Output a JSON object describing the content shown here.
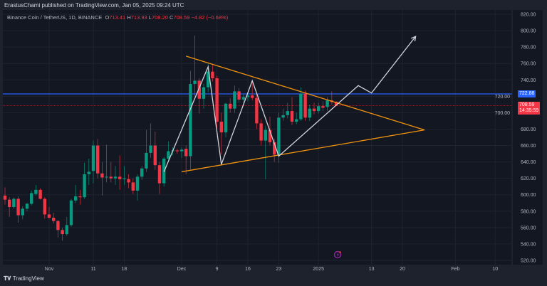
{
  "header": {
    "published": "ErastusChami published on TradingView.com, Jan 05, 2025 09:24 UTC"
  },
  "legend": {
    "symbol": "Binance Coin / TetherUS, 1D, BINANCE",
    "o_label": "O",
    "o": "713.41",
    "h_label": "H",
    "h": "713.93",
    "l_label": "L",
    "l": "708.20",
    "c_label": "C",
    "c": "708.59",
    "change": "−4.82 (−0.68%)"
  },
  "badges": {
    "level": "722.88",
    "last_price": "708.59",
    "countdown": "14:35:59"
  },
  "footer": {
    "brand": "TradingView"
  },
  "colors": {
    "up": "#089981",
    "down": "#f23645",
    "level_line": "#2962ff",
    "trendlines": "#f0920e",
    "projection": "#d1d4dc",
    "background": "#131722"
  },
  "icons": {
    "logo": "tradingview-logo-icon",
    "event": "lightning-icon"
  },
  "chart_data": {
    "type": "candlestick",
    "title": "",
    "interval": "1D",
    "ylim": [
      520,
      820
    ],
    "grid": true,
    "y_ticks": [
      "820.00",
      "800.00",
      "780.00",
      "760.00",
      "740.00",
      "720.00",
      "700.00",
      "680.00",
      "660.00",
      "640.00",
      "620.00",
      "600.00",
      "580.00",
      "560.00",
      "540.00",
      "520.00"
    ],
    "x_ticks": [
      [
        "2024-11-01",
        "Nov"
      ],
      [
        "2024-11-11",
        "11"
      ],
      [
        "2024-11-18",
        "18"
      ],
      [
        "2024-12-01",
        "Dec"
      ],
      [
        "2024-12-09",
        "9"
      ],
      [
        "2024-12-16",
        "16"
      ],
      [
        "2024-12-23",
        "23"
      ],
      [
        "2025-01-01",
        "2025"
      ],
      [
        "2025-01-13",
        "13"
      ],
      [
        "2025-01-20",
        "20"
      ],
      [
        "2025-02-01",
        "Feb"
      ],
      [
        "2025-02-10",
        "10"
      ]
    ],
    "candles_fields": [
      "date",
      "open",
      "high",
      "low",
      "close"
    ],
    "candles": [
      [
        "2024-10-22",
        599,
        609,
        588,
        594
      ],
      [
        "2024-10-23",
        594,
        597,
        573,
        585
      ],
      [
        "2024-10-24",
        585,
        597,
        583,
        595
      ],
      [
        "2024-10-25",
        595,
        598,
        566,
        575
      ],
      [
        "2024-10-26",
        575,
        586,
        570,
        583
      ],
      [
        "2024-10-27",
        583,
        590,
        580,
        589
      ],
      [
        "2024-10-28",
        589,
        605,
        587,
        602
      ],
      [
        "2024-10-29",
        601,
        612,
        599,
        606
      ],
      [
        "2024-10-30",
        606,
        608,
        594,
        595
      ],
      [
        "2024-10-31",
        595,
        597,
        571,
        576
      ],
      [
        "2024-11-01",
        576,
        585,
        571,
        572
      ],
      [
        "2024-11-02",
        572,
        578,
        565,
        568
      ],
      [
        "2024-11-03",
        568,
        569,
        548,
        557
      ],
      [
        "2024-11-04",
        557,
        560,
        544,
        552
      ],
      [
        "2024-11-05",
        552,
        573,
        550,
        563
      ],
      [
        "2024-11-06",
        563,
        595,
        561,
        593
      ],
      [
        "2024-11-07",
        593,
        612,
        590,
        598
      ],
      [
        "2024-11-08",
        598,
        606,
        588,
        597
      ],
      [
        "2024-11-09",
        597,
        639,
        595,
        625
      ],
      [
        "2024-11-10",
        625,
        644,
        612,
        628
      ],
      [
        "2024-11-11",
        629,
        666,
        614,
        660
      ],
      [
        "2024-11-12",
        660,
        668,
        620,
        626
      ],
      [
        "2024-11-13",
        626,
        640,
        599,
        621
      ],
      [
        "2024-11-14",
        621,
        661,
        615,
        622
      ],
      [
        "2024-11-15",
        622,
        640,
        615,
        620
      ],
      [
        "2024-11-16",
        620,
        635,
        612,
        622
      ],
      [
        "2024-11-17",
        622,
        648,
        606,
        619
      ],
      [
        "2024-11-18",
        619,
        635,
        612,
        620
      ],
      [
        "2024-11-19",
        619,
        625,
        608,
        615
      ],
      [
        "2024-11-20",
        615,
        620,
        601,
        605
      ],
      [
        "2024-11-21",
        605,
        625,
        593,
        622
      ],
      [
        "2024-11-22",
        622,
        635,
        618,
        632
      ],
      [
        "2024-11-23",
        632,
        679,
        628,
        651
      ],
      [
        "2024-11-24",
        651,
        687,
        645,
        660
      ],
      [
        "2024-11-25",
        660,
        677,
        630,
        636
      ],
      [
        "2024-11-26",
        636,
        640,
        601,
        614
      ],
      [
        "2024-11-27",
        614,
        646,
        610,
        644
      ],
      [
        "2024-11-28",
        644,
        665,
        640,
        653
      ],
      [
        "2024-11-29",
        653,
        658,
        648,
        654
      ],
      [
        "2024-11-30",
        654,
        656,
        650,
        653
      ],
      [
        "2024-12-01",
        653,
        658,
        645,
        655
      ],
      [
        "2024-12-02",
        656,
        660,
        625,
        647
      ],
      [
        "2024-12-03",
        647,
        751,
        631,
        735
      ],
      [
        "2024-12-04",
        735,
        794,
        720,
        739
      ],
      [
        "2024-12-05",
        739,
        742,
        699,
        717
      ],
      [
        "2024-12-06",
        717,
        735,
        705,
        731
      ],
      [
        "2024-12-07",
        731,
        760,
        725,
        750
      ],
      [
        "2024-12-08",
        750,
        758,
        738,
        742
      ],
      [
        "2024-12-09",
        742,
        745,
        681,
        689
      ],
      [
        "2024-12-10",
        689,
        700,
        649,
        676
      ],
      [
        "2024-12-11",
        676,
        712,
        670,
        711
      ],
      [
        "2024-12-12",
        711,
        718,
        700,
        705
      ],
      [
        "2024-12-13",
        705,
        733,
        700,
        726
      ],
      [
        "2024-12-14",
        726,
        730,
        712,
        716
      ],
      [
        "2024-12-15",
        716,
        722,
        712,
        719
      ],
      [
        "2024-12-16",
        719,
        725,
        714,
        721
      ],
      [
        "2024-12-17",
        721,
        738,
        715,
        718
      ],
      [
        "2024-12-18",
        718,
        724,
        680,
        687
      ],
      [
        "2024-12-19",
        687,
        692,
        660,
        666
      ],
      [
        "2024-12-20",
        666,
        684,
        619,
        679
      ],
      [
        "2024-12-21",
        679,
        695,
        660,
        664
      ],
      [
        "2024-12-22",
        664,
        668,
        640,
        649
      ],
      [
        "2024-12-23",
        649,
        700,
        639,
        694
      ],
      [
        "2024-12-24",
        694,
        705,
        690,
        697
      ],
      [
        "2024-12-25",
        697,
        712,
        693,
        702
      ],
      [
        "2024-12-26",
        702,
        719,
        685,
        689
      ],
      [
        "2024-12-27",
        689,
        700,
        686,
        692
      ],
      [
        "2024-12-28",
        692,
        731,
        690,
        723
      ],
      [
        "2024-12-29",
        723,
        727,
        690,
        694
      ],
      [
        "2024-12-30",
        694,
        710,
        690,
        705
      ],
      [
        "2024-12-31",
        705,
        712,
        698,
        702
      ],
      [
        "2025-01-01",
        702,
        712,
        699,
        708
      ],
      [
        "2025-01-02",
        708,
        714,
        702,
        706
      ],
      [
        "2025-01-03",
        707,
        719,
        702,
        715
      ],
      [
        "2025-01-04",
        715,
        726,
        710,
        713
      ],
      [
        "2025-01-05",
        713.41,
        713.93,
        708.2,
        708.59
      ]
    ],
    "horizontal_lines": [
      {
        "price": 722.88,
        "color": "#2962ff",
        "style": "solid"
      },
      {
        "price": 708.59,
        "color": "#f23645",
        "style": "dotted"
      }
    ],
    "trendlines": [
      {
        "points": [
          [
            "2024-12-02",
            769
          ],
          [
            "2025-01-25",
            679
          ]
        ]
      },
      {
        "points": [
          [
            "2024-12-01",
            628
          ],
          [
            "2025-01-25",
            679
          ]
        ]
      }
    ],
    "projection_path": {
      "points": [
        [
          "2024-11-27",
          628
        ],
        [
          "2024-12-07",
          756
        ],
        [
          "2024-12-10",
          637
        ],
        [
          "2024-12-17",
          739
        ],
        [
          "2024-12-23",
          647
        ],
        [
          "2025-01-10",
          733
        ],
        [
          "2025-01-13",
          724
        ],
        [
          "2025-01-23",
          793
        ]
      ],
      "arrow_end": true
    }
  }
}
